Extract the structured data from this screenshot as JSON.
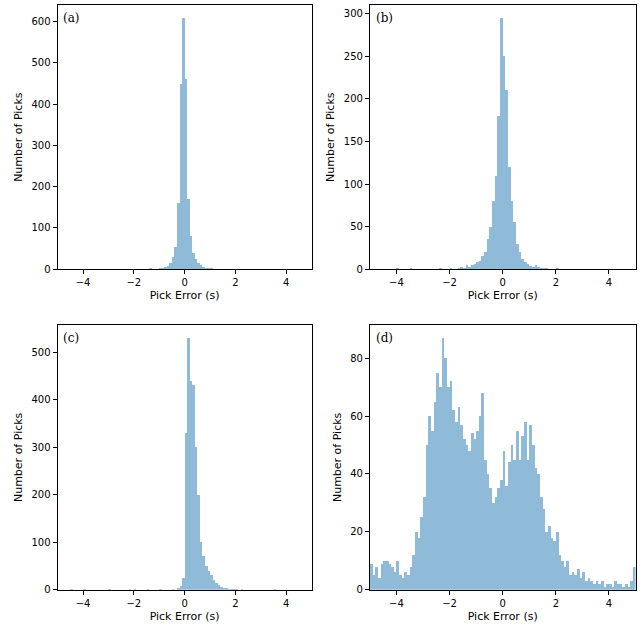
{
  "chart_data": [
    {
      "type": "histogram",
      "annotations": [
        "(a)"
      ],
      "x_label": "Pick Error (s)",
      "y_label": "Number of Picks",
      "color": "#8fbbd9",
      "bins": [
        -5,
        -4.9,
        -4.8,
        -4.7,
        -4.6,
        -4.5,
        -4.4,
        -4.3,
        -4.2,
        -4.1,
        -4,
        -3.9,
        -3.8,
        -3.7,
        -3.6,
        -3.5,
        -3.4,
        -3.3,
        -3.2,
        -3.1,
        -3,
        -2.9,
        -2.8,
        -2.7,
        -2.6,
        -2.5,
        -2.4,
        -2.3,
        -2.2,
        -2.1,
        -2,
        -1.9,
        -1.8,
        -1.7,
        -1.6,
        -1.5,
        -1.4,
        -1.3,
        -1.2,
        -1.1,
        -1,
        -0.9,
        -0.8,
        -0.7,
        -0.6,
        -0.5,
        -0.4,
        -0.3,
        -0.2,
        -0.1,
        0,
        0.1,
        0.2,
        0.3,
        0.4,
        0.5,
        0.6,
        0.7,
        0.8,
        0.9,
        1,
        1.1,
        1.2,
        1.3,
        1.4,
        1.5,
        1.6,
        1.7,
        1.8,
        1.9,
        2,
        2.1,
        2.2,
        2.3,
        2.4,
        2.5,
        2.6,
        2.7,
        2.8,
        2.9,
        3,
        3.1,
        3.2,
        3.3,
        3.4,
        3.5,
        3.6,
        3.7,
        3.8,
        3.9,
        4,
        4.1,
        4.2,
        4.3,
        4.4,
        4.5,
        4.6,
        4.7,
        4.8,
        4.9,
        5
      ],
      "counts": [
        0,
        0,
        0,
        0,
        0,
        0,
        0,
        0,
        0,
        0,
        0,
        0,
        0,
        0,
        1,
        0,
        0,
        0,
        0,
        0,
        0,
        0,
        0,
        0,
        0,
        0,
        0,
        0,
        0,
        0,
        1,
        0,
        0,
        0,
        0,
        0,
        2,
        0,
        1,
        0,
        3,
        2,
        5,
        8,
        15,
        30,
        55,
        160,
        450,
        610,
        460,
        170,
        80,
        40,
        25,
        15,
        10,
        6,
        4,
        2,
        2,
        1,
        0,
        1,
        0,
        1,
        0,
        0,
        0,
        0,
        1,
        0,
        0,
        0,
        0,
        0,
        0,
        0,
        0,
        0,
        0,
        0,
        0,
        0,
        0,
        0,
        0,
        0,
        0,
        0,
        0,
        0,
        0,
        0,
        0,
        0,
        0,
        0,
        0,
        0
      ],
      "xlim": [
        -5,
        5
      ],
      "xticks": [
        -4,
        -2,
        0,
        2,
        4
      ],
      "ylim": [
        0,
        640
      ],
      "yticks": [
        0,
        100,
        200,
        300,
        400,
        500,
        600
      ],
      "grid": false
    },
    {
      "type": "histogram",
      "annotations": [
        "(b)"
      ],
      "x_label": "Pick Error (s)",
      "y_label": "Number of Picks",
      "color": "#8fbbd9",
      "bins": [
        -5,
        -4.9,
        -4.8,
        -4.7,
        -4.6,
        -4.5,
        -4.4,
        -4.3,
        -4.2,
        -4.1,
        -4,
        -3.9,
        -3.8,
        -3.7,
        -3.6,
        -3.5,
        -3.4,
        -3.3,
        -3.2,
        -3.1,
        -3,
        -2.9,
        -2.8,
        -2.7,
        -2.6,
        -2.5,
        -2.4,
        -2.3,
        -2.2,
        -2.1,
        -2,
        -1.9,
        -1.8,
        -1.7,
        -1.6,
        -1.5,
        -1.4,
        -1.3,
        -1.2,
        -1.1,
        -1,
        -0.9,
        -0.8,
        -0.7,
        -0.6,
        -0.5,
        -0.4,
        -0.3,
        -0.2,
        -0.1,
        0,
        0.1,
        0.2,
        0.3,
        0.4,
        0.5,
        0.6,
        0.7,
        0.8,
        0.9,
        1,
        1.1,
        1.2,
        1.3,
        1.4,
        1.5,
        1.6,
        1.7,
        1.8,
        1.9,
        2,
        2.1,
        2.2,
        2.3,
        2.4,
        2.5,
        2.6,
        2.7,
        2.8,
        2.9,
        3,
        3.1,
        3.2,
        3.3,
        3.4,
        3.5,
        3.6,
        3.7,
        3.8,
        3.9,
        4,
        4.1,
        4.2,
        4.3,
        4.4,
        4.5,
        4.6,
        4.7,
        4.8,
        4.9,
        5
      ],
      "counts": [
        0,
        0,
        0,
        0,
        0,
        0,
        0,
        0,
        0,
        0,
        1,
        0,
        0,
        0,
        0,
        1,
        0,
        0,
        0,
        0,
        0,
        0,
        0,
        0,
        0,
        0,
        1,
        0,
        0,
        0,
        1,
        0,
        0,
        2,
        3,
        2,
        5,
        3,
        5,
        6,
        8,
        10,
        15,
        20,
        35,
        50,
        80,
        110,
        180,
        295,
        250,
        210,
        120,
        80,
        55,
        30,
        20,
        12,
        8,
        6,
        4,
        3,
        5,
        3,
        2,
        1,
        1,
        0,
        0,
        0,
        1,
        0,
        0,
        0,
        0,
        0,
        0,
        0,
        0,
        0,
        0,
        0,
        0,
        0,
        0,
        0,
        0,
        0,
        0,
        0,
        0,
        0,
        0,
        0,
        0,
        0,
        0,
        0,
        0,
        0
      ],
      "xlim": [
        -5,
        5
      ],
      "xticks": [
        -4,
        -2,
        0,
        2,
        4
      ],
      "ylim": [
        0,
        310
      ],
      "yticks": [
        0,
        50,
        100,
        150,
        200,
        250,
        300
      ],
      "grid": false
    },
    {
      "type": "histogram",
      "annotations": [
        "(c)"
      ],
      "x_label": "Pick Error (s)",
      "y_label": "Number of Picks",
      "color": "#8fbbd9",
      "bins": [
        -5,
        -4.9,
        -4.8,
        -4.7,
        -4.6,
        -4.5,
        -4.4,
        -4.3,
        -4.2,
        -4.1,
        -4,
        -3.9,
        -3.8,
        -3.7,
        -3.6,
        -3.5,
        -3.4,
        -3.3,
        -3.2,
        -3.1,
        -3,
        -2.9,
        -2.8,
        -2.7,
        -2.6,
        -2.5,
        -2.4,
        -2.3,
        -2.2,
        -2.1,
        -2,
        -1.9,
        -1.8,
        -1.7,
        -1.6,
        -1.5,
        -1.4,
        -1.3,
        -1.2,
        -1.1,
        -1,
        -0.9,
        -0.8,
        -0.7,
        -0.6,
        -0.5,
        -0.4,
        -0.3,
        -0.2,
        -0.1,
        0,
        0.1,
        0.2,
        0.3,
        0.4,
        0.5,
        0.6,
        0.7,
        0.8,
        0.9,
        1,
        1.1,
        1.2,
        1.3,
        1.4,
        1.5,
        1.6,
        1.7,
        1.8,
        1.9,
        2,
        2.1,
        2.2,
        2.3,
        2.4,
        2.5,
        2.6,
        2.7,
        2.8,
        2.9,
        3,
        3.1,
        3.2,
        3.3,
        3.4,
        3.5,
        3.6,
        3.7,
        3.8,
        3.9,
        4,
        4.1,
        4.2,
        4.3,
        4.4,
        4.5,
        4.6,
        4.7,
        4.8,
        4.9,
        5
      ],
      "counts": [
        0,
        0,
        0,
        0,
        0,
        1,
        0,
        0,
        0,
        0,
        1,
        0,
        0,
        0,
        0,
        0,
        0,
        0,
        0,
        0,
        1,
        0,
        0,
        0,
        0,
        0,
        0,
        0,
        2,
        0,
        2,
        0,
        0,
        0,
        0,
        1,
        0,
        0,
        0,
        0,
        1,
        0,
        0,
        0,
        0,
        2,
        0,
        4,
        8,
        25,
        330,
        530,
        440,
        430,
        300,
        200,
        100,
        70,
        50,
        40,
        30,
        20,
        15,
        10,
        6,
        4,
        3,
        2,
        2,
        1,
        1,
        0,
        1,
        0,
        0,
        0,
        0,
        0,
        0,
        0,
        0,
        0,
        0,
        0,
        0,
        1,
        0,
        0,
        0,
        0,
        0,
        0,
        0,
        0,
        0,
        0,
        0,
        0,
        0,
        0
      ],
      "xlim": [
        -5,
        5
      ],
      "xticks": [
        -4,
        -2,
        0,
        2,
        4
      ],
      "ylim": [
        0,
        557
      ],
      "yticks": [
        0,
        100,
        200,
        300,
        400,
        500
      ],
      "grid": false
    },
    {
      "type": "histogram",
      "annotations": [
        "(d)"
      ],
      "x_label": "Pick Error (s)",
      "y_label": "Number of Picks",
      "color": "#8fbbd9",
      "bins": [
        -5,
        -4.9,
        -4.8,
        -4.7,
        -4.6,
        -4.5,
        -4.4,
        -4.3,
        -4.2,
        -4.1,
        -4,
        -3.9,
        -3.8,
        -3.7,
        -3.6,
        -3.5,
        -3.4,
        -3.3,
        -3.2,
        -3.1,
        -3,
        -2.9,
        -2.8,
        -2.7,
        -2.6,
        -2.5,
        -2.4,
        -2.3,
        -2.2,
        -2.1,
        -2,
        -1.9,
        -1.8,
        -1.7,
        -1.6,
        -1.5,
        -1.4,
        -1.3,
        -1.2,
        -1.1,
        -1,
        -0.9,
        -0.8,
        -0.7,
        -0.6,
        -0.5,
        -0.4,
        -0.3,
        -0.2,
        -0.1,
        0,
        0.1,
        0.2,
        0.3,
        0.4,
        0.5,
        0.6,
        0.7,
        0.8,
        0.9,
        1,
        1.1,
        1.2,
        1.3,
        1.4,
        1.5,
        1.6,
        1.7,
        1.8,
        1.9,
        2,
        2.1,
        2.2,
        2.3,
        2.4,
        2.5,
        2.6,
        2.7,
        2.8,
        2.9,
        3,
        3.1,
        3.2,
        3.3,
        3.4,
        3.5,
        3.6,
        3.7,
        3.8,
        3.9,
        4,
        4.1,
        4.2,
        4.3,
        4.4,
        4.5,
        4.6,
        4.7,
        4.8,
        4.9,
        5
      ],
      "counts": [
        9,
        5,
        8,
        4,
        9,
        10,
        10,
        9,
        8,
        6,
        10,
        5,
        4,
        6,
        5,
        8,
        12,
        20,
        18,
        25,
        32,
        50,
        60,
        55,
        65,
        75,
        70,
        87,
        80,
        70,
        72,
        62,
        58,
        63,
        57,
        52,
        50,
        48,
        54,
        52,
        55,
        60,
        68,
        45,
        40,
        35,
        30,
        32,
        35,
        38,
        48,
        36,
        44,
        50,
        45,
        55,
        45,
        53,
        58,
        45,
        57,
        50,
        42,
        40,
        32,
        28,
        20,
        22,
        18,
        17,
        20,
        12,
        10,
        8,
        10,
        5,
        6,
        5,
        7,
        4,
        6,
        3,
        4,
        3,
        2,
        3,
        2,
        3,
        1,
        2,
        2,
        1,
        3,
        2,
        2,
        1,
        2,
        1,
        3,
        8
      ],
      "xlim": [
        -5,
        5
      ],
      "xticks": [
        -4,
        -2,
        0,
        2,
        4
      ],
      "ylim": [
        0,
        91.5
      ],
      "yticks": [
        0,
        20,
        40,
        60,
        80
      ],
      "grid": false
    }
  ]
}
